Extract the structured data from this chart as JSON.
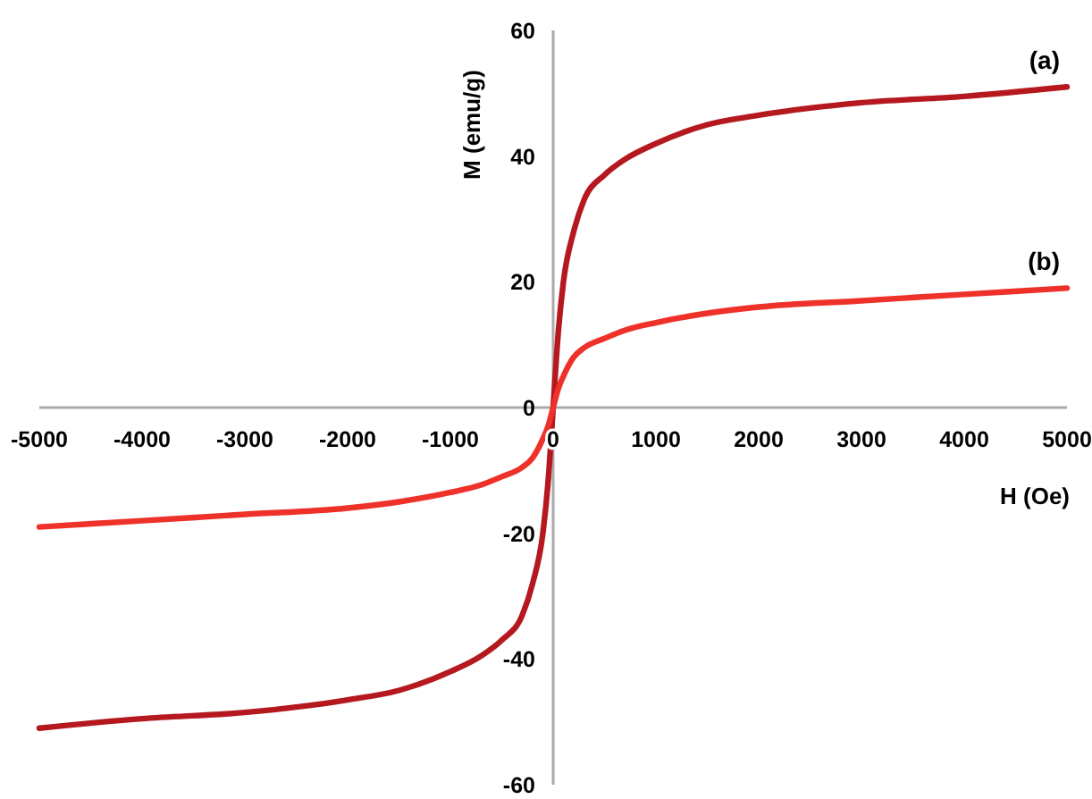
{
  "chart_data": {
    "type": "line",
    "xlabel": "H (Oe)",
    "ylabel": "M (emu/g)",
    "x": [
      -5000,
      -4000,
      -3000,
      -2000,
      -1500,
      -1000,
      -700,
      -500,
      -300,
      -200,
      -100,
      -50,
      0,
      50,
      100,
      200,
      300,
      500,
      700,
      1000,
      1500,
      2000,
      3000,
      4000,
      5000
    ],
    "series": [
      {
        "name": "(a)",
        "color": "#b5191f",
        "values": [
          -51,
          -49.5,
          -48.5,
          -46.5,
          -45,
          -42,
          -39.5,
          -37,
          -33,
          -28,
          -20,
          -12,
          0,
          12,
          20,
          28,
          33,
          37,
          39.5,
          42,
          45,
          46.5,
          48.5,
          49.5,
          51
        ]
      },
      {
        "name": "(b)",
        "color": "#ee3129",
        "values": [
          -19,
          -18,
          -17,
          -16,
          -15,
          -13.5,
          -12.3,
          -11,
          -9.5,
          -8,
          -5,
          -3,
          0,
          3,
          5,
          8,
          9.5,
          11,
          12.3,
          13.5,
          15,
          16,
          17,
          18,
          19
        ]
      }
    ],
    "xlim": [
      -5000,
      5000
    ],
    "xticks": [
      -5000,
      -4000,
      -3000,
      -2000,
      -1000,
      0,
      1000,
      2000,
      3000,
      4000,
      5000
    ],
    "ylim": [
      -60,
      60
    ],
    "yticks": [
      -60,
      -40,
      -20,
      0,
      20,
      40,
      60
    ],
    "grid": false,
    "marker": "none",
    "line_style": "solid"
  }
}
